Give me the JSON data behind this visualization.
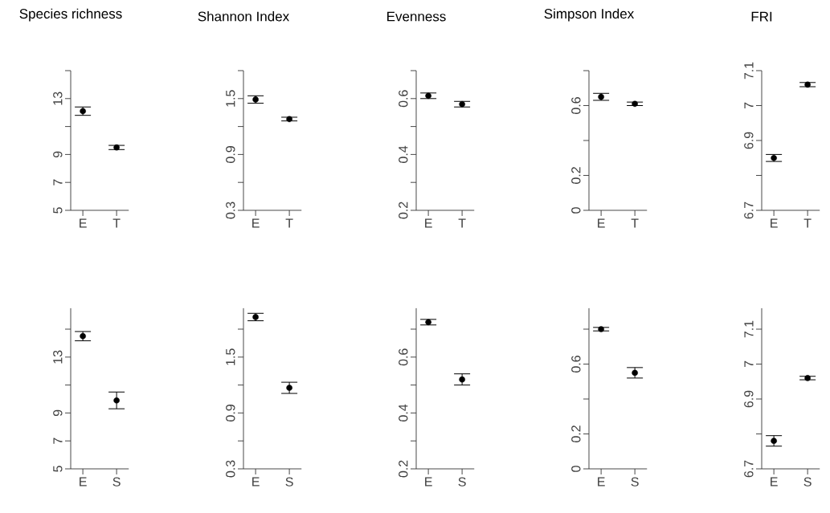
{
  "chart_data": [
    {
      "type": "scatter",
      "title": "Species richness",
      "categories": [
        "E",
        "T"
      ],
      "values": [
        12.1,
        9.5
      ],
      "errors": [
        0.3,
        0.15
      ],
      "color": "#000000",
      "marker": "circle",
      "ylim": [
        5,
        15
      ],
      "yticks": [
        5,
        7,
        9,
        {
          "value": 11,
          "label": null
        },
        13,
        {
          "value": 15,
          "label": null
        }
      ]
    },
    {
      "type": "scatter",
      "title": "Shannon Index",
      "categories": [
        "E",
        "T"
      ],
      "values": [
        1.49,
        1.28
      ],
      "errors": [
        0.04,
        0.02
      ],
      "color": "#000000",
      "marker": "circle",
      "ylim": [
        0.3,
        1.8
      ],
      "yticks": [
        0.3,
        {
          "value": 0.6,
          "label": null
        },
        0.9,
        {
          "value": 1.2,
          "label": null
        },
        1.5,
        {
          "value": 1.8,
          "label": null
        }
      ]
    },
    {
      "type": "scatter",
      "title": "Evenness",
      "categories": [
        "E",
        "T"
      ],
      "values": [
        0.61,
        0.58
      ],
      "errors": [
        0.01,
        0.01
      ],
      "color": "#000000",
      "marker": "circle",
      "ylim": [
        0.2,
        0.7
      ],
      "yticks": [
        0.2,
        {
          "value": 0.3,
          "label": null
        },
        0.4,
        {
          "value": 0.5,
          "label": null
        },
        0.6,
        {
          "value": 0.7,
          "label": null
        }
      ]
    },
    {
      "type": "scatter",
      "title": "Simpson Index",
      "categories": [
        "E",
        "T"
      ],
      "values": [
        0.65,
        0.61
      ],
      "errors": [
        0.02,
        0.01
      ],
      "color": "#000000",
      "marker": "circle",
      "ylim": [
        0,
        0.8
      ],
      "yticks": [
        0,
        0.2,
        {
          "value": 0.4,
          "label": null
        },
        0.6,
        {
          "value": 0.8,
          "label": null
        }
      ]
    },
    {
      "type": "scatter",
      "title": "FRI",
      "categories": [
        "E",
        "T"
      ],
      "values": [
        6.85,
        7.06
      ],
      "errors": [
        0.01,
        0.006
      ],
      "color": "#000000",
      "marker": "circle",
      "ylim": [
        6.7,
        7.1
      ],
      "yticks": [
        6.7,
        {
          "value": 6.8,
          "label": null
        },
        6.9,
        7,
        7.1
      ]
    },
    {
      "type": "scatter",
      "categories": [
        "E",
        "S"
      ],
      "values": [
        14.5,
        9.9
      ],
      "errors": [
        0.33,
        0.6
      ],
      "color": "#000000",
      "marker": "circle",
      "ylim": [
        5,
        16.5
      ],
      "yticks": [
        5,
        7,
        9,
        {
          "value": 11,
          "label": null
        },
        13,
        {
          "value": 15,
          "label": null
        }
      ]
    },
    {
      "type": "scatter",
      "categories": [
        "E",
        "S"
      ],
      "values": [
        1.93,
        1.17
      ],
      "errors": [
        0.04,
        0.06
      ],
      "color": "#000000",
      "marker": "circle",
      "ylim": [
        0.3,
        2.025
      ],
      "yticks": [
        0.3,
        {
          "value": 0.6,
          "label": null
        },
        0.9,
        {
          "value": 1.2,
          "label": null
        },
        1.5,
        {
          "value": 1.8,
          "label": null
        }
      ]
    },
    {
      "type": "scatter",
      "categories": [
        "E",
        "S"
      ],
      "values": [
        0.725,
        0.52
      ],
      "errors": [
        0.01,
        0.02
      ],
      "color": "#000000",
      "marker": "circle",
      "ylim": [
        0.2,
        0.775
      ],
      "yticks": [
        0.2,
        {
          "value": 0.3,
          "label": null
        },
        0.4,
        {
          "value": 0.5,
          "label": null
        },
        0.6,
        {
          "value": 0.7,
          "label": null
        }
      ]
    },
    {
      "type": "scatter",
      "categories": [
        "E",
        "S"
      ],
      "values": [
        0.8,
        0.55
      ],
      "errors": [
        0.01,
        0.03
      ],
      "color": "#000000",
      "marker": "circle",
      "ylim": [
        0,
        0.92
      ],
      "yticks": [
        0,
        0.2,
        {
          "value": 0.4,
          "label": null
        },
        0.6,
        {
          "value": 0.8,
          "label": null
        }
      ]
    },
    {
      "type": "scatter",
      "categories": [
        "E",
        "S"
      ],
      "values": [
        6.78,
        6.96
      ],
      "errors": [
        0.015,
        0.005
      ],
      "color": "#000000",
      "marker": "circle",
      "ylim": [
        6.7,
        7.16
      ],
      "yticks": [
        6.7,
        {
          "value": 6.8,
          "label": null
        },
        6.9,
        7,
        7.1
      ]
    }
  ]
}
